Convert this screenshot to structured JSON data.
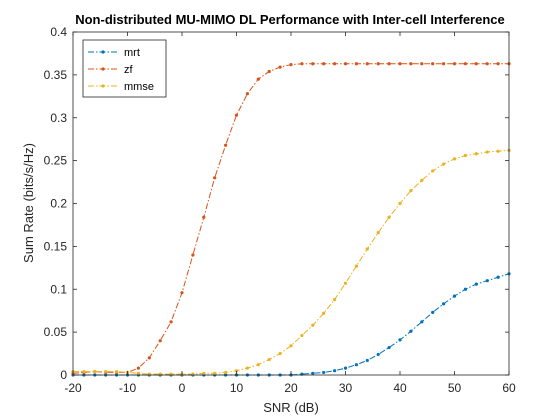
{
  "chart_data": {
    "type": "line",
    "title": "Non-distributed MU-MIMO DL Performance with Inter-cell Interference",
    "xlabel": "SNR (dB)",
    "ylabel": "Sum Rate (bits/s/Hz)",
    "xlim": [
      -20,
      60
    ],
    "ylim": [
      0,
      0.4
    ],
    "xticks": [
      -20,
      -10,
      0,
      10,
      20,
      30,
      40,
      50,
      60
    ],
    "yticks": [
      0,
      0.05,
      0.1,
      0.15,
      0.2,
      0.25,
      0.3,
      0.35,
      0.4
    ],
    "grid": false,
    "legend_position": "top-left",
    "x": [
      -20,
      -18,
      -16,
      -14,
      -12,
      -10,
      -8,
      -6,
      -4,
      -2,
      0,
      2,
      4,
      6,
      8,
      10,
      12,
      14,
      16,
      18,
      20,
      22,
      24,
      26,
      28,
      30,
      32,
      34,
      36,
      38,
      40,
      42,
      44,
      46,
      48,
      50,
      52,
      54,
      56,
      58,
      60
    ],
    "series": [
      {
        "name": "mrt",
        "color": "#0072BD",
        "marker": "dot",
        "values": [
          0,
          0,
          0,
          0,
          0,
          0,
          0,
          0,
          0,
          0,
          0,
          0,
          0,
          0,
          0,
          0,
          0,
          0,
          0,
          0,
          0,
          0.001,
          0.002,
          0.003,
          0.005,
          0.008,
          0.012,
          0.017,
          0.024,
          0.032,
          0.041,
          0.051,
          0.062,
          0.073,
          0.083,
          0.092,
          0.1,
          0.106,
          0.11,
          0.114,
          0.118
        ]
      },
      {
        "name": "zf",
        "color": "#D95319",
        "marker": "dot",
        "values": [
          0.002,
          0.003,
          0.004,
          0.003,
          0.003,
          0.003,
          0.008,
          0.02,
          0.04,
          0.062,
          0.096,
          0.14,
          0.184,
          0.23,
          0.268,
          0.303,
          0.328,
          0.345,
          0.354,
          0.359,
          0.362,
          0.363,
          0.363,
          0.363,
          0.363,
          0.363,
          0.363,
          0.363,
          0.363,
          0.363,
          0.363,
          0.363,
          0.363,
          0.363,
          0.363,
          0.363,
          0.363,
          0.363,
          0.363,
          0.363,
          0.363
        ]
      },
      {
        "name": "mmse",
        "color": "#EDB120",
        "marker": "dot",
        "values": [
          0.004,
          0.004,
          0.004,
          0.004,
          0.004,
          0.003,
          0.002,
          0.001,
          0.001,
          0.001,
          0.001,
          0.001,
          0.002,
          0.002,
          0.003,
          0.005,
          0.008,
          0.012,
          0.018,
          0.025,
          0.034,
          0.046,
          0.058,
          0.072,
          0.088,
          0.107,
          0.127,
          0.147,
          0.166,
          0.184,
          0.2,
          0.215,
          0.227,
          0.238,
          0.246,
          0.252,
          0.256,
          0.258,
          0.26,
          0.261,
          0.262
        ]
      }
    ]
  }
}
